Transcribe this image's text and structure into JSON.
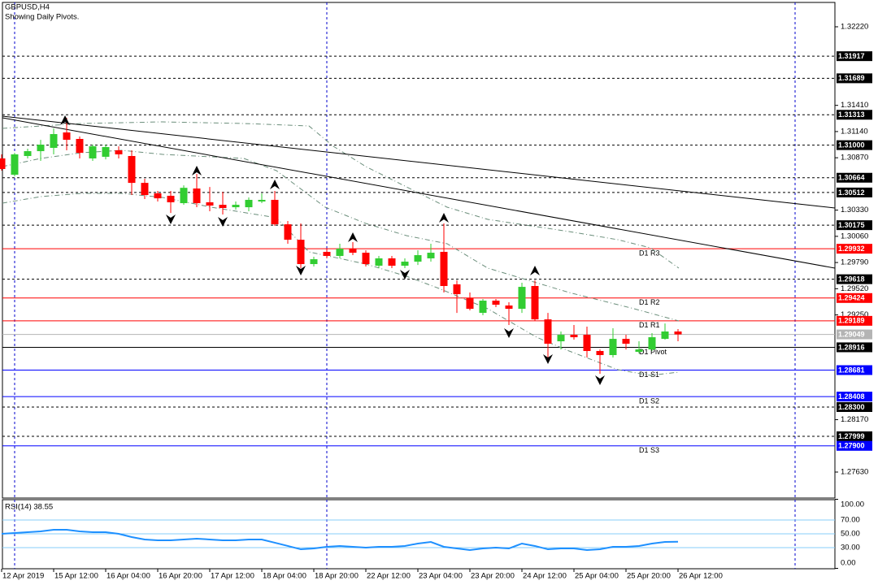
{
  "chart_data": {
    "type": "candlestick",
    "title": "GBPUSD,H4",
    "subtitle": "Showing Daily Pivots.",
    "categories": [
      "12 Apr 2019",
      null,
      null,
      null,
      "15 Apr 12:00",
      null,
      null,
      null,
      "16 Apr 04:00",
      null,
      null,
      null,
      "16 Apr 20:00",
      null,
      null,
      null,
      "17 Apr 12:00",
      null,
      null,
      null,
      "18 Apr 04:00",
      null,
      null,
      null,
      "18 Apr 20:00",
      null,
      null,
      null,
      "22 Apr 12:00",
      null,
      null,
      null,
      "23 Apr 04:00",
      null,
      null,
      null,
      "23 Apr 20:00",
      null,
      null,
      null,
      "24 Apr 12:00",
      null,
      null,
      null,
      "25 Apr 04:00",
      null,
      null,
      null,
      "25 Apr 20:00",
      null,
      null,
      null,
      "26 Apr 12:00"
    ],
    "open": [
      1.30863,
      1.30695,
      1.30888,
      1.30938,
      1.30972,
      1.31131,
      1.31064,
      1.30863,
      1.3088,
      1.30947,
      1.30888,
      1.30611,
      1.30503,
      1.30478,
      1.30402,
      1.30553,
      1.30411,
      1.30385,
      1.3036,
      1.3036,
      1.30419,
      1.30436,
      1.30184,
      1.30025,
      1.29774,
      1.299,
      1.29858,
      1.29933,
      1.29891,
      1.29757,
      1.29833,
      1.29757,
      1.29799,
      1.29833,
      1.299,
      1.29565,
      1.29422,
      1.29271,
      1.29397,
      1.29347,
      1.29313,
      1.29548,
      1.29204,
      1.28978,
      1.29045,
      1.29045,
      1.28878,
      1.28836,
      1.29003,
      1.28869,
      1.28894,
      1.29003,
      1.29079
    ],
    "high": [
      1.30905,
      1.30921,
      1.30963,
      1.31055,
      1.31173,
      1.31282,
      1.31089,
      1.31005,
      1.31005,
      1.30988,
      1.30947,
      1.30653,
      1.30528,
      1.30528,
      1.30585,
      1.30704,
      1.30569,
      1.30519,
      1.30419,
      1.30461,
      1.30503,
      1.30528,
      1.30218,
      1.30193,
      1.29849,
      1.29933,
      1.29983,
      1.3,
      1.29916,
      1.29858,
      1.29858,
      1.29833,
      1.29916,
      1.29983,
      1.30193,
      1.29606,
      1.29481,
      1.29414,
      1.29414,
      1.2938,
      1.29581,
      1.29606,
      1.29271,
      1.29079,
      1.29146,
      1.29129,
      1.28894,
      1.29112,
      1.29045,
      1.28978,
      1.29062,
      1.29162,
      1.29104
    ],
    "low": [
      1.30737,
      1.30679,
      1.30863,
      1.30838,
      1.30905,
      1.30947,
      1.30863,
      1.30838,
      1.30854,
      1.30863,
      1.30486,
      1.30444,
      1.30419,
      1.30301,
      1.30385,
      1.3036,
      1.30318,
      1.30285,
      1.30335,
      1.30318,
      1.30402,
      1.30168,
      1.29983,
      1.29732,
      1.29749,
      1.29833,
      1.29833,
      1.29866,
      1.29749,
      1.29732,
      1.29732,
      1.29732,
      1.29765,
      1.29799,
      1.29481,
      1.29271,
      1.29297,
      1.29246,
      1.2933,
      1.29146,
      1.29271,
      1.29188,
      1.28811,
      1.28894,
      1.28995,
      1.28811,
      1.28643,
      1.28811,
      1.28894,
      1.28853,
      1.28878,
      1.28995,
      1.28978
    ],
    "close": [
      1.30754,
      1.30905,
      1.30938,
      1.31005,
      1.31114,
      1.31055,
      1.30921,
      1.30988,
      1.3098,
      1.30905,
      1.30611,
      1.30486,
      1.30452,
      1.30411,
      1.3056,
      1.30402,
      1.30377,
      1.30352,
      1.30385,
      1.30436,
      1.30436,
      1.30184,
      1.30025,
      1.29774,
      1.29824,
      1.29858,
      1.29933,
      1.29891,
      1.29774,
      1.29833,
      1.29757,
      1.29799,
      1.29866,
      1.29891,
      1.29548,
      1.29464,
      1.29313,
      1.29397,
      1.29355,
      1.29313,
      1.29539,
      1.29204,
      1.28953,
      1.29045,
      1.2902,
      1.28878,
      1.28836,
      1.29003,
      1.28953,
      1.28894,
      1.2902,
      1.29079,
      1.29049
    ],
    "up_color": "#32cd32",
    "down_color": "#ff0000",
    "ylim": [
      1.27362,
      1.32471
    ],
    "yticks": [
      {
        "value": 1.3222,
        "label": "1.32220"
      },
      {
        "value": 1.3141,
        "label": "1.31410"
      },
      {
        "value": 1.3114,
        "label": "1.31140"
      },
      {
        "value": 1.3087,
        "label": "1.30870"
      },
      {
        "value": 1.3033,
        "label": "1.30330"
      },
      {
        "value": 1.3006,
        "label": "1.30060"
      },
      {
        "value": 1.2979,
        "label": "1.29790"
      },
      {
        "value": 1.2952,
        "label": "1.29520"
      },
      {
        "value": 1.2925,
        "label": "1.29250"
      },
      {
        "value": 1.2817,
        "label": "1.28170"
      },
      {
        "value": 1.2763,
        "label": "1.27630"
      }
    ],
    "levels": [
      {
        "value": 1.31917,
        "label": "1.31917",
        "color": "#000000",
        "style": "dash"
      },
      {
        "value": 1.31689,
        "label": "1.31689",
        "color": "#000000",
        "style": "dash"
      },
      {
        "value": 1.31313,
        "label": "1.31313",
        "color": "#000000",
        "style": "dash"
      },
      {
        "value": 1.31,
        "label": "1.31000",
        "color": "#000000",
        "style": "dash"
      },
      {
        "value": 1.30664,
        "label": "1.30664",
        "color": "#000000",
        "style": "dash"
      },
      {
        "value": 1.30512,
        "label": "1.30512",
        "color": "#000000",
        "style": "dash"
      },
      {
        "value": 1.30175,
        "label": "1.30175",
        "color": "#000000",
        "style": "dash"
      },
      {
        "value": 1.29932,
        "label": "1.29932",
        "color": "#ff0000",
        "style": "solid",
        "pivot": "D1 R3"
      },
      {
        "value": 1.29618,
        "label": "1.29618",
        "color": "#000000",
        "style": "dash"
      },
      {
        "value": 1.29424,
        "label": "1.29424",
        "color": "#ff0000",
        "style": "solid",
        "pivot": "D1 R2"
      },
      {
        "value": 1.29189,
        "label": "1.29189",
        "color": "#ff0000",
        "style": "solid",
        "pivot": "D1 R1"
      },
      {
        "value": 1.29049,
        "label": "1.29049",
        "color": "#b4b4b4",
        "style": "solid"
      },
      {
        "value": 1.28916,
        "label": "1.28916",
        "color": "#000000",
        "style": "solid",
        "pivot": "D1 Pivot"
      },
      {
        "value": 1.28681,
        "label": "1.28681",
        "color": "#0000ff",
        "style": "solid",
        "pivot": "D1 S1"
      },
      {
        "value": 1.28408,
        "label": "1.28408",
        "color": "#0000ff",
        "style": "solid",
        "pivot": "D1 S2"
      },
      {
        "value": 1.283,
        "label": "1.28300",
        "color": "#000000",
        "style": "dash"
      },
      {
        "value": 1.27999,
        "label": "1.27999",
        "color": "#000000",
        "style": "dash"
      },
      {
        "value": 1.279,
        "label": "1.27900",
        "color": "#0000ff",
        "style": "solid",
        "pivot": "D1 S3"
      }
    ],
    "indicator": {
      "type": "line",
      "title": "RSI(14) 38.55",
      "color": "#1e90ff",
      "values": [
        50.0,
        51.2,
        52.4,
        53.5,
        55.9,
        55.9,
        53.5,
        52.4,
        52.4,
        50.0,
        45.3,
        41.8,
        40.6,
        40.6,
        41.8,
        42.9,
        41.8,
        40.6,
        40.6,
        41.8,
        41.8,
        37.1,
        32.4,
        27.6,
        28.8,
        31.2,
        32.4,
        31.2,
        30.0,
        31.2,
        31.2,
        32.4,
        35.9,
        38.2,
        31.2,
        28.8,
        26.5,
        28.8,
        30.0,
        28.8,
        35.9,
        32.4,
        27.6,
        28.8,
        28.8,
        26.5,
        27.6,
        31.2,
        31.2,
        32.4,
        35.9,
        38.2,
        38.55
      ],
      "ylim": [
        0,
        100
      ],
      "yticks": [
        {
          "value": 100,
          "label": "100.00"
        },
        {
          "value": 70,
          "label": "70.00"
        },
        {
          "value": 50,
          "label": "50.00"
        },
        {
          "value": 30,
          "label": "30.00"
        },
        {
          "value": 0,
          "label": "0.00"
        }
      ],
      "grid": true,
      "grid_color": "#87cefa"
    }
  }
}
